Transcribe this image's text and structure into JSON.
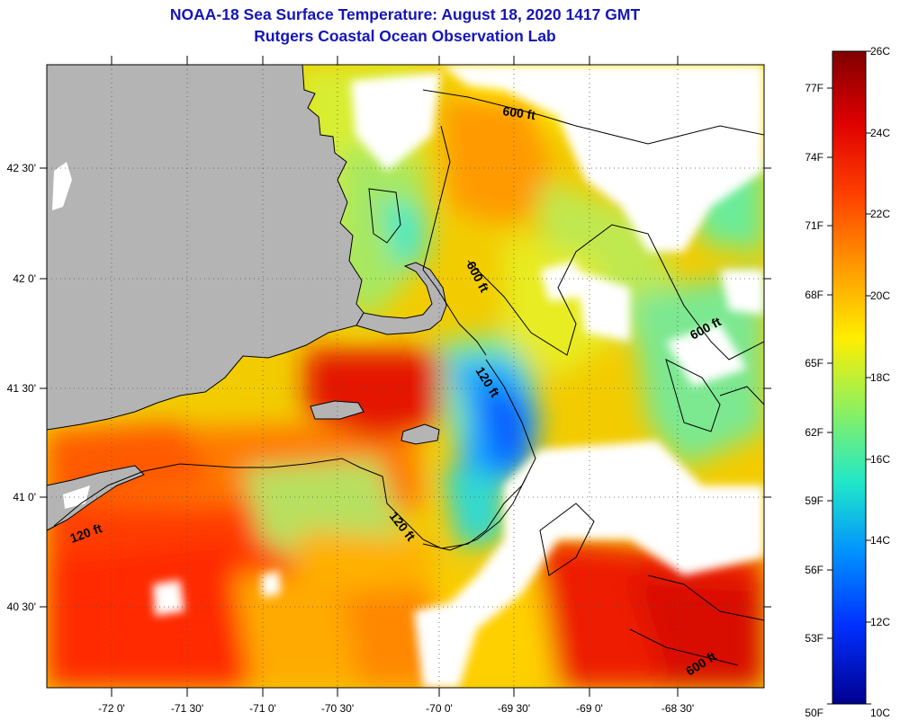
{
  "header": {
    "title": "NOAA-18 Sea Surface Temperature:  August 18, 2020 1417 GMT",
    "subtitle": "Rutgers Coastal Ocean Observation Lab"
  },
  "map": {
    "x_ticks": [
      "-72 0'",
      "-71 30'",
      "-71 0'",
      "-70 30'",
      "-70 0'",
      "-69 30'",
      "-69 0'",
      "-68 30'"
    ],
    "y_ticks": [
      "42 30'",
      "42 0'",
      "41 30'",
      "41 0'",
      "40 30'"
    ],
    "contour_labels": [
      "600 ft",
      "600 ft",
      "600 ft",
      "600 ft",
      "120 ft",
      "120 ft",
      "120 ft"
    ]
  },
  "colorbar": {
    "celsius": [
      "26C",
      "24C",
      "22C",
      "20C",
      "18C",
      "16C",
      "14C",
      "12C",
      "10C"
    ],
    "fahrenheit": [
      "77F",
      "74F",
      "71F",
      "68F",
      "65F",
      "62F",
      "59F",
      "56F",
      "53F",
      "50F"
    ],
    "gradient": [
      "#800000",
      "#e00000",
      "#ff4000",
      "#ff9900",
      "#ffee00",
      "#8cf060",
      "#20e8c8",
      "#0090ff",
      "#0030ff",
      "#000090"
    ]
  },
  "colors": {
    "land": "#b4b4b4",
    "cloud": "#ffffff",
    "title": "#1515b8"
  }
}
